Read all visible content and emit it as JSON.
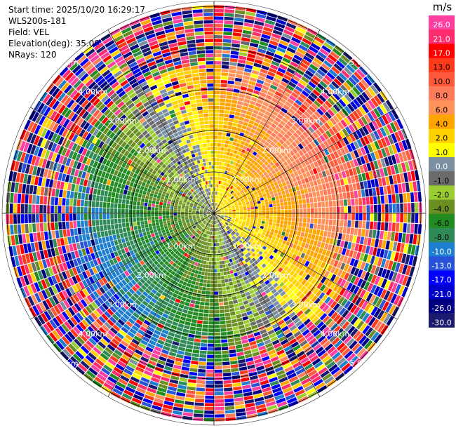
{
  "info": {
    "start_time": "Start time: 2025/10/20 16:29:17",
    "instrument": "WLS200s-181",
    "field": "Field: VEL",
    "elevation": "Elevation(deg): 35.00",
    "nrays": "NRays: 120"
  },
  "chart_data": {
    "type": "heatmap",
    "projection": "polar-ppi",
    "field": "VEL",
    "rays": 120,
    "range_rings_km": [
      "1.00km",
      "2.00km",
      "3.00km",
      "4.00km",
      "5.00km"
    ],
    "range_max_km": 5.1,
    "colorbar": {
      "unit": "m/s",
      "ticks": [
        "26.0",
        "21.0",
        "17.0",
        "13.0",
        "10.0",
        "8.0",
        "6.0",
        "4.0",
        "2.0",
        "1.0",
        "0.0",
        "-1.0",
        "-2.0",
        "-4.0",
        "-6.0",
        "-8.0",
        "-10.0",
        "-13.0",
        "-17.0",
        "-21.0",
        "-26.0",
        "-30.0"
      ],
      "colors": [
        "#ff3fa0",
        "#ff2d6e",
        "#ff0000",
        "#ff3a1a",
        "#ff5a3c",
        "#ff7b5a",
        "#ff9258",
        "#ffa500",
        "#ffd200",
        "#ffff00",
        "#7b8fa0",
        "#6b6b6b",
        "#9acd32",
        "#6b8e23",
        "#228b22",
        "#2e8b57",
        "#1e7fd0",
        "#2852d8",
        "#0000ff",
        "#0000cd",
        "#000080",
        "#1a1a6e"
      ]
    },
    "pattern": {
      "positive_sector_center_deg": 60,
      "negative_sector_center_deg": 240,
      "inner_valid_range_km": 3.6
    }
  }
}
